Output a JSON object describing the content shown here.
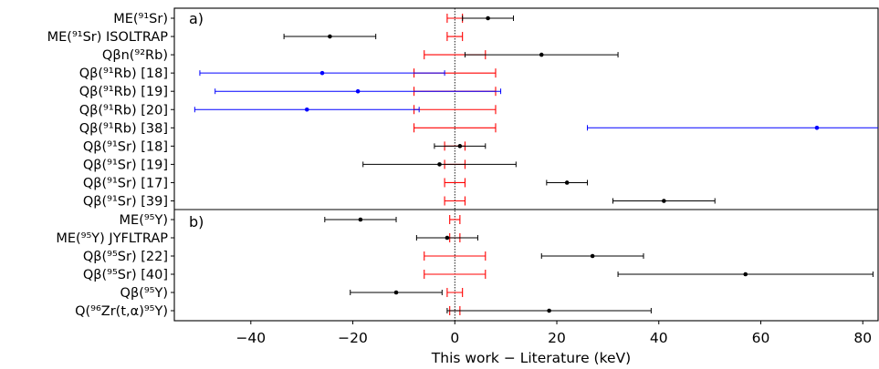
{
  "chart_data": [
    {
      "type": "errorbar",
      "panel": "a)",
      "xlabel": "This work − Literature (keV)",
      "xlim": [
        -55,
        83
      ],
      "xticks": [
        -40,
        -20,
        0,
        20,
        40,
        60,
        80
      ],
      "xtick_labels": [
        "−40",
        "−20",
        "0",
        "20",
        "40",
        "60",
        "80"
      ],
      "rows": [
        {
          "label": "ME(⁹¹Sr)",
          "value": 6.5,
          "err": 5.0,
          "color": "#000000",
          "ref_err": 1.5
        },
        {
          "label": "ME(⁹¹Sr) ISOLTRAP",
          "value": -24.5,
          "err": 9.0,
          "color": "#000000",
          "ref_err": 1.5
        },
        {
          "label": "Qβn(⁹²Rb)",
          "value": 17.0,
          "err": 15.0,
          "color": "#000000",
          "ref_err": 6.0
        },
        {
          "label": "Qβ(⁹¹Rb) [18]",
          "value": -26.0,
          "err": 24.0,
          "color": "#0000ff",
          "ref_err": 8.0
        },
        {
          "label": "Qβ(⁹¹Rb) [19]",
          "value": -19.0,
          "err": 28.0,
          "color": "#0000ff",
          "ref_err": 8.0
        },
        {
          "label": "Qβ(⁹¹Rb) [20]",
          "value": -29.0,
          "err": 22.0,
          "color": "#0000ff",
          "ref_err": 8.0
        },
        {
          "label": "Qβ(⁹¹Rb) [38]",
          "value": 71.0,
          "err": 45.0,
          "color": "#0000ff",
          "ref_err": 8.0
        },
        {
          "label": "Qβ(⁹¹Sr) [18]",
          "value": 1.0,
          "err": 5.0,
          "color": "#000000",
          "ref_err": 2.0
        },
        {
          "label": "Qβ(⁹¹Sr) [19]",
          "value": -3.0,
          "err": 15.0,
          "color": "#000000",
          "ref_err": 2.0
        },
        {
          "label": "Qβ(⁹¹Sr) [17]",
          "value": 22.0,
          "err": 4.0,
          "color": "#000000",
          "ref_err": 2.0
        },
        {
          "label": "Qβ(⁹¹Sr) [39]",
          "value": 41.0,
          "err": 10.0,
          "color": "#000000",
          "ref_err": 2.0
        }
      ]
    },
    {
      "type": "errorbar",
      "panel": "b)",
      "xlabel": "This work − Literature (keV)",
      "xlim": [
        -55,
        83
      ],
      "rows": [
        {
          "label": "ME(⁹⁵Y)",
          "value": -18.5,
          "err": 7.0,
          "color": "#000000",
          "ref_err": 1.0
        },
        {
          "label": "ME(⁹⁵Y) JYFLTRAP",
          "value": -1.5,
          "err": 6.0,
          "color": "#000000",
          "ref_err": 1.0
        },
        {
          "label": "Qβ(⁹⁵Sr) [22]",
          "value": 27.0,
          "err": 10.0,
          "color": "#000000",
          "ref_err": 6.0
        },
        {
          "label": "Qβ(⁹⁵Sr) [40]",
          "value": 57.0,
          "err": 25.0,
          "color": "#000000",
          "ref_err": 6.0
        },
        {
          "label": "Qβ(⁹⁵Y)",
          "value": -11.5,
          "err": 9.0,
          "color": "#000000",
          "ref_err": 1.5
        },
        {
          "label": "Q(⁹⁶Zr(t,α)⁹⁵Y)",
          "value": 18.5,
          "err": 20.0,
          "color": "#000000",
          "ref_err": 1.0
        }
      ]
    }
  ],
  "style": {
    "reference_color": "#ff0000",
    "zero_line_color": "#000000"
  }
}
